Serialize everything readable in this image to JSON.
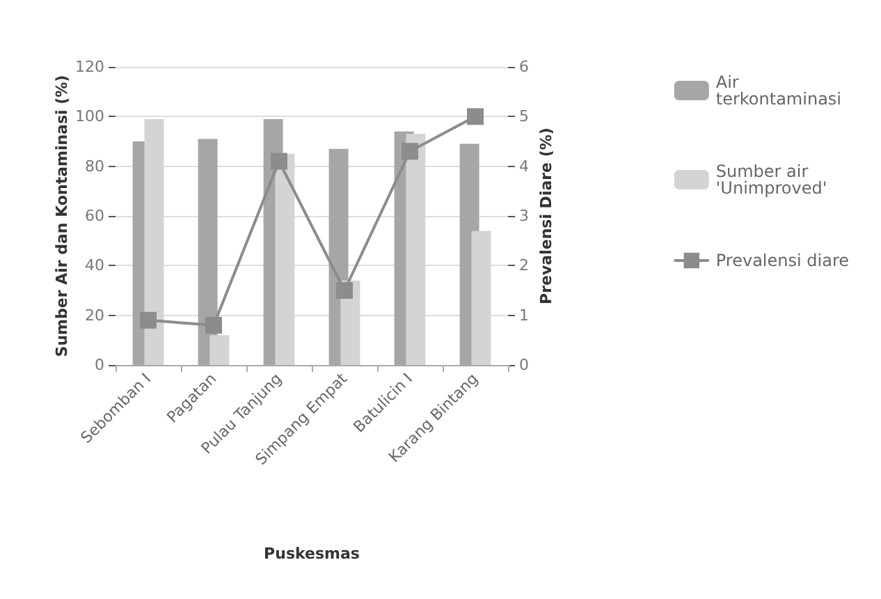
{
  "chart_data": {
    "type": "bar",
    "xlabel": "Puskesmas",
    "ylabel": "Sumber Air dan Kontaminasi (%)",
    "y2label": "Prevalensi Diare (%)",
    "categories": [
      "Sebomban I",
      "Pagatan",
      "Pulau Tanjung",
      "Simpang Empat",
      "Batulicin I",
      "Karang Bintang"
    ],
    "series": [
      {
        "name": "Air terkontaminasi",
        "color": "#a6a6a6",
        "values": [
          90,
          91,
          99,
          87,
          94,
          89
        ]
      },
      {
        "name": "Sumber air 'Unimproved'",
        "color": "#d4d4d4",
        "values": [
          99,
          12,
          85,
          34,
          93,
          54
        ]
      },
      {
        "name": "Prevalensi diare",
        "type": "line",
        "axis": "y2",
        "color": "#8c8c8c",
        "marker": "square",
        "values": [
          0.9,
          0.8,
          4.1,
          1.5,
          4.3,
          5.0
        ]
      }
    ],
    "ylim": [
      0,
      120
    ],
    "yticks": [
      0,
      20,
      40,
      60,
      80,
      100,
      120
    ],
    "y2lim": [
      0,
      6
    ],
    "y2ticks": [
      0,
      1,
      2,
      3,
      4,
      5,
      6
    ],
    "grid": "y",
    "legend": "right"
  }
}
